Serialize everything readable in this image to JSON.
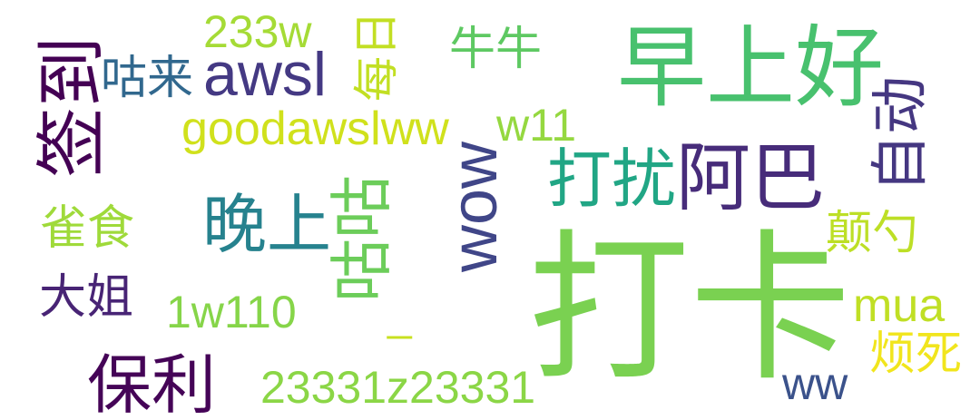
{
  "background": "#ffffff",
  "words": [
    {
      "text": "打卡",
      "color": "#7ad151"
    },
    {
      "text": "早上好",
      "color": "#48c16e"
    },
    {
      "text": "阿巴",
      "color": "#472c7a"
    },
    {
      "text": "打扰",
      "color": "#21a685"
    },
    {
      "text": "晚上",
      "color": "#26828e"
    },
    {
      "text": "咕咕",
      "color": "#6ccd5a"
    },
    {
      "text": "awsl",
      "color": "#443983"
    },
    {
      "text": "签到",
      "color": "#440154"
    },
    {
      "text": "咕来",
      "color": "#31688e"
    },
    {
      "text": "233w",
      "color": "#a5db36"
    },
    {
      "text": "每日",
      "color": "#c2df23"
    },
    {
      "text": "牛牛",
      "color": "#5ec962"
    },
    {
      "text": "goodawslww",
      "color": "#d0e11c"
    },
    {
      "text": "w11",
      "color": "#95d840"
    },
    {
      "text": "wow",
      "color": "#404688"
    },
    {
      "text": "自动",
      "color": "#453781"
    },
    {
      "text": "颠勺",
      "color": "#bddf26"
    },
    {
      "text": "雀食",
      "color": "#9fda3a"
    },
    {
      "text": "大姐",
      "color": "#482475"
    },
    {
      "text": "1w110",
      "color": "#86d549"
    },
    {
      "text": "_",
      "color": "#c8e020"
    },
    {
      "text": "mua",
      "color": "#c0df25"
    },
    {
      "text": "烦死",
      "color": "#f1e51d"
    },
    {
      "text": "保利",
      "color": "#450457"
    },
    {
      "text": "23331z23331",
      "color": "#8bd646"
    },
    {
      "text": "ww",
      "color": "#3b528b"
    }
  ]
}
